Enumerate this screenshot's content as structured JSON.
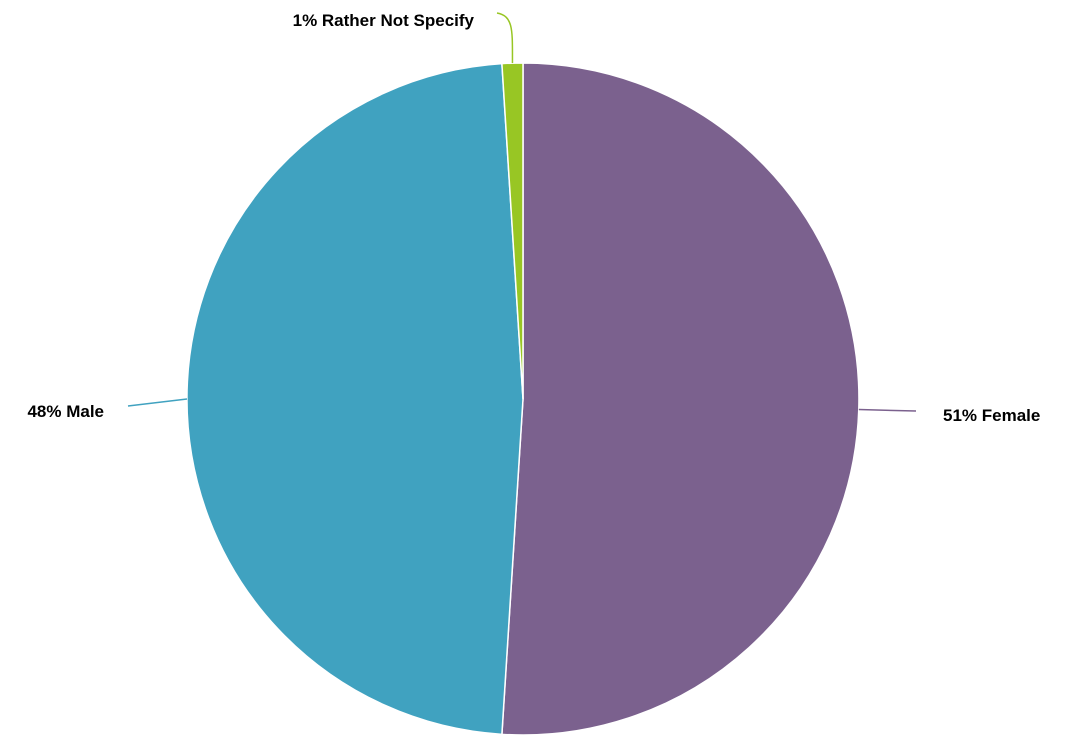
{
  "chart_data": {
    "type": "pie",
    "title": "",
    "start_angle_deg": 0,
    "direction": "clockwise",
    "slices": [
      {
        "name": "Female",
        "value": 51,
        "label": "51% Female",
        "color": "#7B618E"
      },
      {
        "name": "Male",
        "value": 48,
        "label": "48% Male",
        "color": "#40A2C0"
      },
      {
        "name": "Rather Not Specify",
        "value": 1,
        "label": "1% Rather Not Specify",
        "color": "#98C624"
      }
    ],
    "legend": "none",
    "data_labels": "outside-with-leader-lines"
  }
}
